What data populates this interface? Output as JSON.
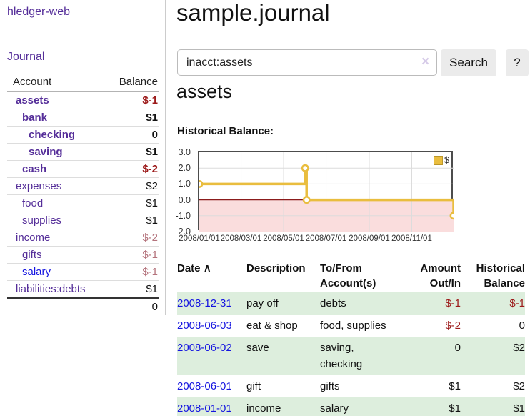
{
  "app": {
    "title": "hledger-web"
  },
  "sidebar": {
    "journal_label": "Journal",
    "table": {
      "headers": {
        "account": "Account",
        "balance": "Balance"
      },
      "rows": [
        {
          "account": "assets",
          "balance": "$-1"
        },
        {
          "account": "bank",
          "balance": "$1"
        },
        {
          "account": "checking",
          "balance": "0"
        },
        {
          "account": "saving",
          "balance": "$1"
        },
        {
          "account": "cash",
          "balance": "$-2"
        },
        {
          "account": "expenses",
          "balance": "$2"
        },
        {
          "account": "food",
          "balance": "$1"
        },
        {
          "account": "supplies",
          "balance": "$1"
        },
        {
          "account": "income",
          "balance": "$-2"
        },
        {
          "account": "gifts",
          "balance": "$-1"
        },
        {
          "account": "salary",
          "balance": "$-1"
        },
        {
          "account": "liabilities:debts",
          "balance": "$1"
        }
      ],
      "total": "0"
    }
  },
  "header": {
    "title": "sample.journal"
  },
  "search": {
    "value": "inacct:assets",
    "button_label": "Search",
    "help_label": "?"
  },
  "icons": {
    "clear": "×",
    "sort_asc": "∧"
  },
  "account_page": {
    "title": "assets",
    "chart_label": "Historical Balance:"
  },
  "chart_data": {
    "type": "line",
    "title": "Historical Balance",
    "step": true,
    "ylim": [
      -2,
      3
    ],
    "y_ticks": [
      "3.0",
      "2.0",
      "1.0",
      "0.0",
      "-1.0",
      "-2.0"
    ],
    "x_ticks": [
      "2008/01/01",
      "2008/03/01",
      "2008/05/01",
      "2008/07/01",
      "2008/09/01",
      "2008/11/01"
    ],
    "x_range": [
      "2008-01-01",
      "2009-01-01"
    ],
    "legend_position": "top-right",
    "grid": true,
    "series": [
      {
        "name": "$",
        "color": "#e9bd3e",
        "points": [
          {
            "date": "2008-01-01",
            "value": 1
          },
          {
            "date": "2008-06-01",
            "value": 2
          },
          {
            "date": "2008-06-03",
            "value": 0
          },
          {
            "date": "2008-12-31",
            "value": -1
          }
        ]
      }
    ],
    "negative_region_color": "#fadddd",
    "zero_line_color": "#8b1b1b",
    "grid_color": "#dcdcdc"
  },
  "register": {
    "headers": {
      "date": "Date",
      "description": "Description",
      "accounts": "To/From Account(s)",
      "amount": "Amount Out/In",
      "balance": "Historical Balance"
    },
    "rows": [
      {
        "date": "2008-12-31",
        "description": "pay off",
        "accounts": "debts",
        "amount": "$-1",
        "balance": "$-1"
      },
      {
        "date": "2008-06-03",
        "description": "eat & shop",
        "accounts": "food, supplies",
        "amount": "$-2",
        "balance": "0"
      },
      {
        "date": "2008-06-02",
        "description": "save",
        "accounts": "saving, checking",
        "amount": "0",
        "balance": "$2"
      },
      {
        "date": "2008-06-01",
        "description": "gift",
        "accounts": "gifts",
        "amount": "$1",
        "balance": "$2"
      },
      {
        "date": "2008-01-01",
        "description": "income",
        "accounts": "salary",
        "amount": "$1",
        "balance": "$1"
      }
    ]
  },
  "colors": {
    "link_purple": "#552e99",
    "link_blue": "#1414e0",
    "negative_strong": "#9c1a1a",
    "negative_light": "#b4737c",
    "row_green": "#ddeedd",
    "series_gold": "#e9bd3e"
  }
}
